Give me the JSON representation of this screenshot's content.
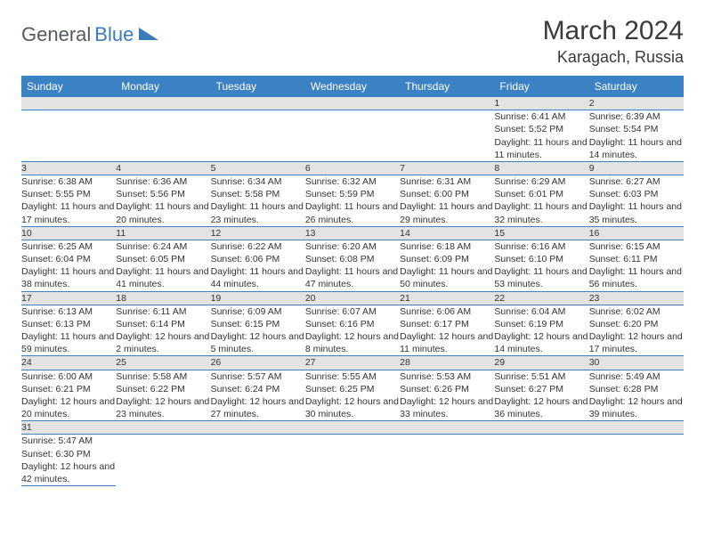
{
  "logo": {
    "general": "General",
    "blue": "Blue"
  },
  "title": "March 2024",
  "location": "Karagach, Russia",
  "colors": {
    "header_bg": "#3b82c4",
    "header_text": "#ffffff",
    "daynum_bg": "#e3e3e3",
    "row_divider": "#3b82c4",
    "logo_gray": "#555960",
    "logo_blue": "#3a7ab8"
  },
  "day_headers": [
    "Sunday",
    "Monday",
    "Tuesday",
    "Wednesday",
    "Thursday",
    "Friday",
    "Saturday"
  ],
  "weeks": [
    {
      "nums": [
        "",
        "",
        "",
        "",
        "",
        "1",
        "2"
      ],
      "details": [
        "",
        "",
        "",
        "",
        "",
        "Sunrise: 6:41 AM\nSunset: 5:52 PM\nDaylight: 11 hours and 11 minutes.",
        "Sunrise: 6:39 AM\nSunset: 5:54 PM\nDaylight: 11 hours and 14 minutes."
      ]
    },
    {
      "nums": [
        "3",
        "4",
        "5",
        "6",
        "7",
        "8",
        "9"
      ],
      "details": [
        "Sunrise: 6:38 AM\nSunset: 5:55 PM\nDaylight: 11 hours and 17 minutes.",
        "Sunrise: 6:36 AM\nSunset: 5:56 PM\nDaylight: 11 hours and 20 minutes.",
        "Sunrise: 6:34 AM\nSunset: 5:58 PM\nDaylight: 11 hours and 23 minutes.",
        "Sunrise: 6:32 AM\nSunset: 5:59 PM\nDaylight: 11 hours and 26 minutes.",
        "Sunrise: 6:31 AM\nSunset: 6:00 PM\nDaylight: 11 hours and 29 minutes.",
        "Sunrise: 6:29 AM\nSunset: 6:01 PM\nDaylight: 11 hours and 32 minutes.",
        "Sunrise: 6:27 AM\nSunset: 6:03 PM\nDaylight: 11 hours and 35 minutes."
      ]
    },
    {
      "nums": [
        "10",
        "11",
        "12",
        "13",
        "14",
        "15",
        "16"
      ],
      "details": [
        "Sunrise: 6:25 AM\nSunset: 6:04 PM\nDaylight: 11 hours and 38 minutes.",
        "Sunrise: 6:24 AM\nSunset: 6:05 PM\nDaylight: 11 hours and 41 minutes.",
        "Sunrise: 6:22 AM\nSunset: 6:06 PM\nDaylight: 11 hours and 44 minutes.",
        "Sunrise: 6:20 AM\nSunset: 6:08 PM\nDaylight: 11 hours and 47 minutes.",
        "Sunrise: 6:18 AM\nSunset: 6:09 PM\nDaylight: 11 hours and 50 minutes.",
        "Sunrise: 6:16 AM\nSunset: 6:10 PM\nDaylight: 11 hours and 53 minutes.",
        "Sunrise: 6:15 AM\nSunset: 6:11 PM\nDaylight: 11 hours and 56 minutes."
      ]
    },
    {
      "nums": [
        "17",
        "18",
        "19",
        "20",
        "21",
        "22",
        "23"
      ],
      "details": [
        "Sunrise: 6:13 AM\nSunset: 6:13 PM\nDaylight: 11 hours and 59 minutes.",
        "Sunrise: 6:11 AM\nSunset: 6:14 PM\nDaylight: 12 hours and 2 minutes.",
        "Sunrise: 6:09 AM\nSunset: 6:15 PM\nDaylight: 12 hours and 5 minutes.",
        "Sunrise: 6:07 AM\nSunset: 6:16 PM\nDaylight: 12 hours and 8 minutes.",
        "Sunrise: 6:06 AM\nSunset: 6:17 PM\nDaylight: 12 hours and 11 minutes.",
        "Sunrise: 6:04 AM\nSunset: 6:19 PM\nDaylight: 12 hours and 14 minutes.",
        "Sunrise: 6:02 AM\nSunset: 6:20 PM\nDaylight: 12 hours and 17 minutes."
      ]
    },
    {
      "nums": [
        "24",
        "25",
        "26",
        "27",
        "28",
        "29",
        "30"
      ],
      "details": [
        "Sunrise: 6:00 AM\nSunset: 6:21 PM\nDaylight: 12 hours and 20 minutes.",
        "Sunrise: 5:58 AM\nSunset: 6:22 PM\nDaylight: 12 hours and 23 minutes.",
        "Sunrise: 5:57 AM\nSunset: 6:24 PM\nDaylight: 12 hours and 27 minutes.",
        "Sunrise: 5:55 AM\nSunset: 6:25 PM\nDaylight: 12 hours and 30 minutes.",
        "Sunrise: 5:53 AM\nSunset: 6:26 PM\nDaylight: 12 hours and 33 minutes.",
        "Sunrise: 5:51 AM\nSunset: 6:27 PM\nDaylight: 12 hours and 36 minutes.",
        "Sunrise: 5:49 AM\nSunset: 6:28 PM\nDaylight: 12 hours and 39 minutes."
      ]
    },
    {
      "nums": [
        "31",
        "",
        "",
        "",
        "",
        "",
        ""
      ],
      "details": [
        "Sunrise: 5:47 AM\nSunset: 6:30 PM\nDaylight: 12 hours and 42 minutes.",
        "",
        "",
        "",
        "",
        "",
        ""
      ]
    }
  ]
}
